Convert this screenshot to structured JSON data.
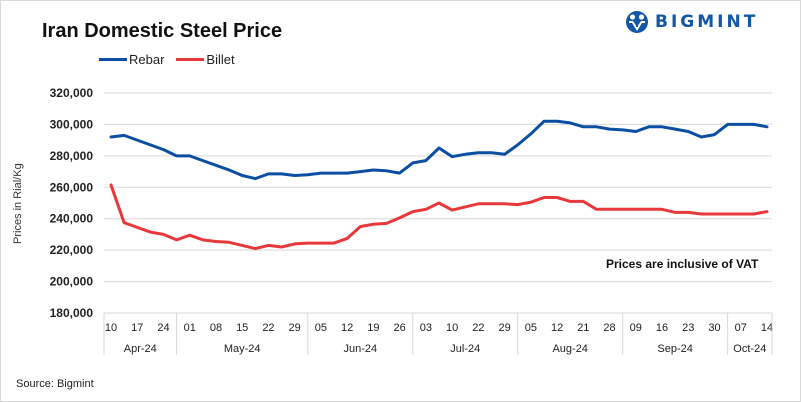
{
  "chart_data": {
    "type": "line",
    "title": "Iran Domestic Steel Price",
    "xlabel": "",
    "ylabel": "Prices in Rial/Kg",
    "ylim": [
      180000,
      320000
    ],
    "yticks": [
      320000,
      300000,
      280000,
      260000,
      240000,
      220000,
      200000,
      180000
    ],
    "ytick_labels": [
      "320,000",
      "300,000",
      "280,000",
      "260,000",
      "240,000",
      "220,000",
      "200,000",
      "180,000"
    ],
    "grid": true,
    "legend_position": "top-left",
    "x_tick_labels": [
      "10",
      "17",
      "24",
      "01",
      "08",
      "15",
      "22",
      "29",
      "05",
      "12",
      "19",
      "26",
      "03",
      "10",
      "22",
      "29",
      "05",
      "12",
      "21",
      "28",
      "09",
      "16",
      "23",
      "30",
      "07",
      "14"
    ],
    "month_groups": [
      {
        "label": "Apr-24",
        "ticks": 3
      },
      {
        "label": "May-24",
        "ticks": 5
      },
      {
        "label": "Jun-24",
        "ticks": 4
      },
      {
        "label": "Jul-24",
        "ticks": 4
      },
      {
        "label": "Aug-24",
        "ticks": 4
      },
      {
        "label": "Sep-24",
        "ticks": 4
      },
      {
        "label": "Oct-24",
        "ticks": 2
      }
    ],
    "point_count": 51,
    "series": [
      {
        "name": "Rebar",
        "color": "#0b4ea2",
        "values": [
          292000,
          293000,
          290000,
          287000,
          284000,
          280000,
          280000,
          277000,
          274000,
          271000,
          267500,
          265500,
          268500,
          268500,
          267500,
          268000,
          269000,
          269000,
          269000,
          270000,
          271000,
          270500,
          269000,
          275500,
          277000,
          285000,
          279500,
          281000,
          282000,
          282000,
          281000,
          287000,
          294000,
          302000,
          302000,
          301000,
          298500,
          298500,
          297000,
          296500,
          295500,
          298500,
          298500,
          297000,
          295500,
          292000,
          293500,
          300000,
          300000,
          300000,
          298500
        ]
      },
      {
        "name": "Billet",
        "color": "#e8383b",
        "values": [
          261500,
          237500,
          234500,
          231500,
          230000,
          226500,
          229500,
          226500,
          225500,
          225000,
          223000,
          221000,
          223000,
          222000,
          224000,
          224500,
          224500,
          224500,
          227500,
          235000,
          236500,
          237000,
          240500,
          244500,
          246000,
          250000,
          245500,
          247500,
          249500,
          249500,
          249500,
          249000,
          250500,
          253500,
          253500,
          251000,
          251000,
          246000,
          246000,
          246000,
          246000,
          246000,
          246000,
          244000,
          244000,
          243000,
          243000,
          243000,
          243000,
          243000,
          244500
        ]
      }
    ],
    "annotations": [
      "Prices are inclusive  of VAT"
    ]
  },
  "logo": {
    "text": "BIGMINT"
  },
  "source": "Source: Bigmint",
  "note": "Prices are inclusive  of VAT"
}
